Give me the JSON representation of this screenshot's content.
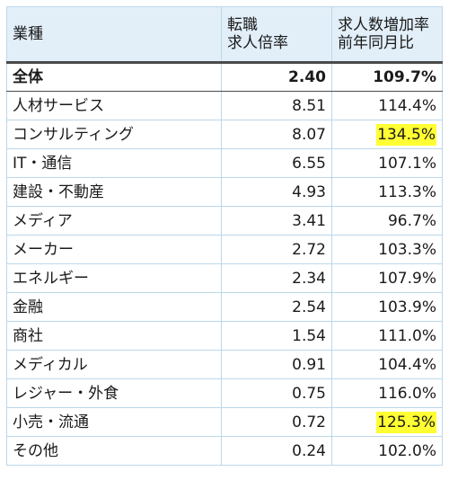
{
  "header": {
    "category": "業種",
    "ratio_line1": "転職",
    "ratio_line2": "求人倍率",
    "growth_line1": "求人数増加率",
    "growth_line2": "前年同月比"
  },
  "total": {
    "category": "全体",
    "ratio": "2.40",
    "growth": "109.7%"
  },
  "rows": [
    {
      "category": "人材サービス",
      "ratio": "8.51",
      "growth": "114.4%"
    },
    {
      "category": "コンサルティング",
      "ratio": "8.07",
      "growth": "134.5%"
    },
    {
      "category": "IT・通信",
      "ratio": "6.55",
      "growth": "107.1%"
    },
    {
      "category": "建設・不動産",
      "ratio": "4.93",
      "growth": "113.3%"
    },
    {
      "category": "メディア",
      "ratio": "3.41",
      "growth": "96.7%"
    },
    {
      "category": "メーカー",
      "ratio": "2.72",
      "growth": "103.3%"
    },
    {
      "category": "エネルギー",
      "ratio": "2.34",
      "growth": "107.9%"
    },
    {
      "category": "金融",
      "ratio": "2.54",
      "growth": "103.9%"
    },
    {
      "category": "商社",
      "ratio": "1.54",
      "growth": "111.0%"
    },
    {
      "category": "メディカル",
      "ratio": "0.91",
      "growth": "104.4%"
    },
    {
      "category": "レジャー・外食",
      "ratio": "0.75",
      "growth": "116.0%"
    },
    {
      "category": "小売・流通",
      "ratio": "0.72",
      "growth": "125.3%"
    },
    {
      "category": "その他",
      "ratio": "0.24",
      "growth": "102.0%"
    }
  ],
  "highlight_color": "#ffff33"
}
